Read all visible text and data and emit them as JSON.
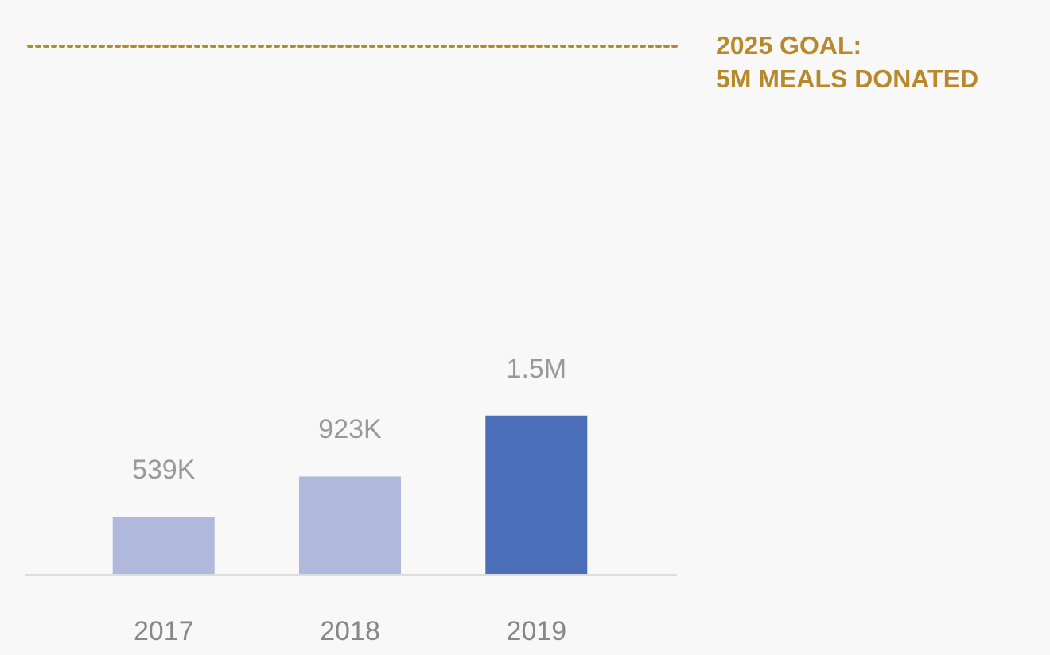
{
  "chart_data": {
    "type": "bar",
    "categories": [
      "2017",
      "2018",
      "2019"
    ],
    "values": [
      539000,
      923000,
      1500000
    ],
    "colors": [
      "#b0b9dc",
      "#b0b9dc",
      "#4a6fb8"
    ],
    "value_labels": [
      "539K",
      "923K",
      "1.5M"
    ],
    "ylim": [
      0,
      5000000
    ],
    "ref_lines": [
      {
        "axis": "y",
        "value": 5000000,
        "label": "2025 GOAL:\n5M MEALS DONATED",
        "color": "#b8892a",
        "line_style": "dotted"
      }
    ],
    "grid": false
  }
}
